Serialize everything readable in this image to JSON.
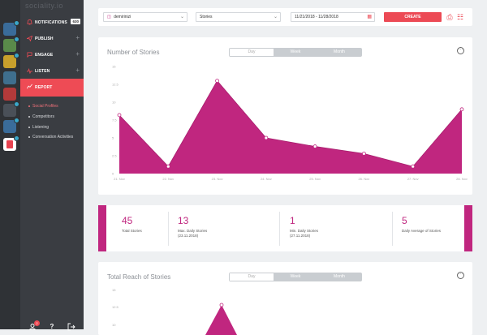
{
  "app": {
    "logo_text": "sociality.io"
  },
  "colors": {
    "accent": "#ec4a55",
    "chart": "#c0267f",
    "sidebar": "#3a3d42",
    "rail": "#2f3236"
  },
  "nav": {
    "items": [
      {
        "label": "NOTIFICATIONS",
        "count": "630",
        "icon": "bell-icon"
      },
      {
        "label": "PUBLISH",
        "icon": "send-icon"
      },
      {
        "label": "ENGAGE",
        "icon": "chat-icon"
      },
      {
        "label": "LISTEN",
        "icon": "pulse-icon"
      },
      {
        "label": "REPORT",
        "icon": "chart-icon"
      }
    ],
    "report_sub": [
      {
        "label": "Social Profiles",
        "active": true
      },
      {
        "label": "Competitors"
      },
      {
        "label": "Listening"
      },
      {
        "label": "Conversation Activities"
      }
    ],
    "bottom_badge": "2"
  },
  "toolbar": {
    "account": "demirinizi",
    "metric": "Stories",
    "date_range": "11/21/2018 - 11/28/2018",
    "create_label": "CREATE"
  },
  "stories_chart": {
    "title": "Number of Stories",
    "segments": [
      "Day",
      "Week",
      "Month"
    ],
    "active_segment": "Day"
  },
  "chart_data": {
    "type": "area",
    "title": "Number of Stories",
    "x": [
      "21. Nov",
      "22. Nov",
      "23. Nov",
      "24. Nov",
      "25. Nov",
      "26. Nov",
      "27. Nov",
      "28. Nov"
    ],
    "values": [
      8.2,
      1.0,
      13.0,
      5.0,
      3.8,
      2.8,
      1.0,
      9.0
    ],
    "y_ticks": [
      "15",
      "12.5",
      "10",
      "7.5",
      "5",
      "2.5",
      "0"
    ],
    "ylim": [
      0,
      15
    ]
  },
  "stats": [
    {
      "value": "45",
      "label": "Total Stories"
    },
    {
      "value": "13",
      "label": "Max. Daily Stories (23.11.2018)"
    },
    {
      "value": "1",
      "label": "Min. Daily Stories (27.11.2018)"
    },
    {
      "value": "5",
      "label": "Daily Average of Stories"
    }
  ],
  "reach_chart": {
    "title": "Total Reach of Stories",
    "segments": [
      "Day",
      "Week",
      "Month"
    ],
    "y_ticks": [
      "15",
      "12.5",
      "10"
    ]
  }
}
